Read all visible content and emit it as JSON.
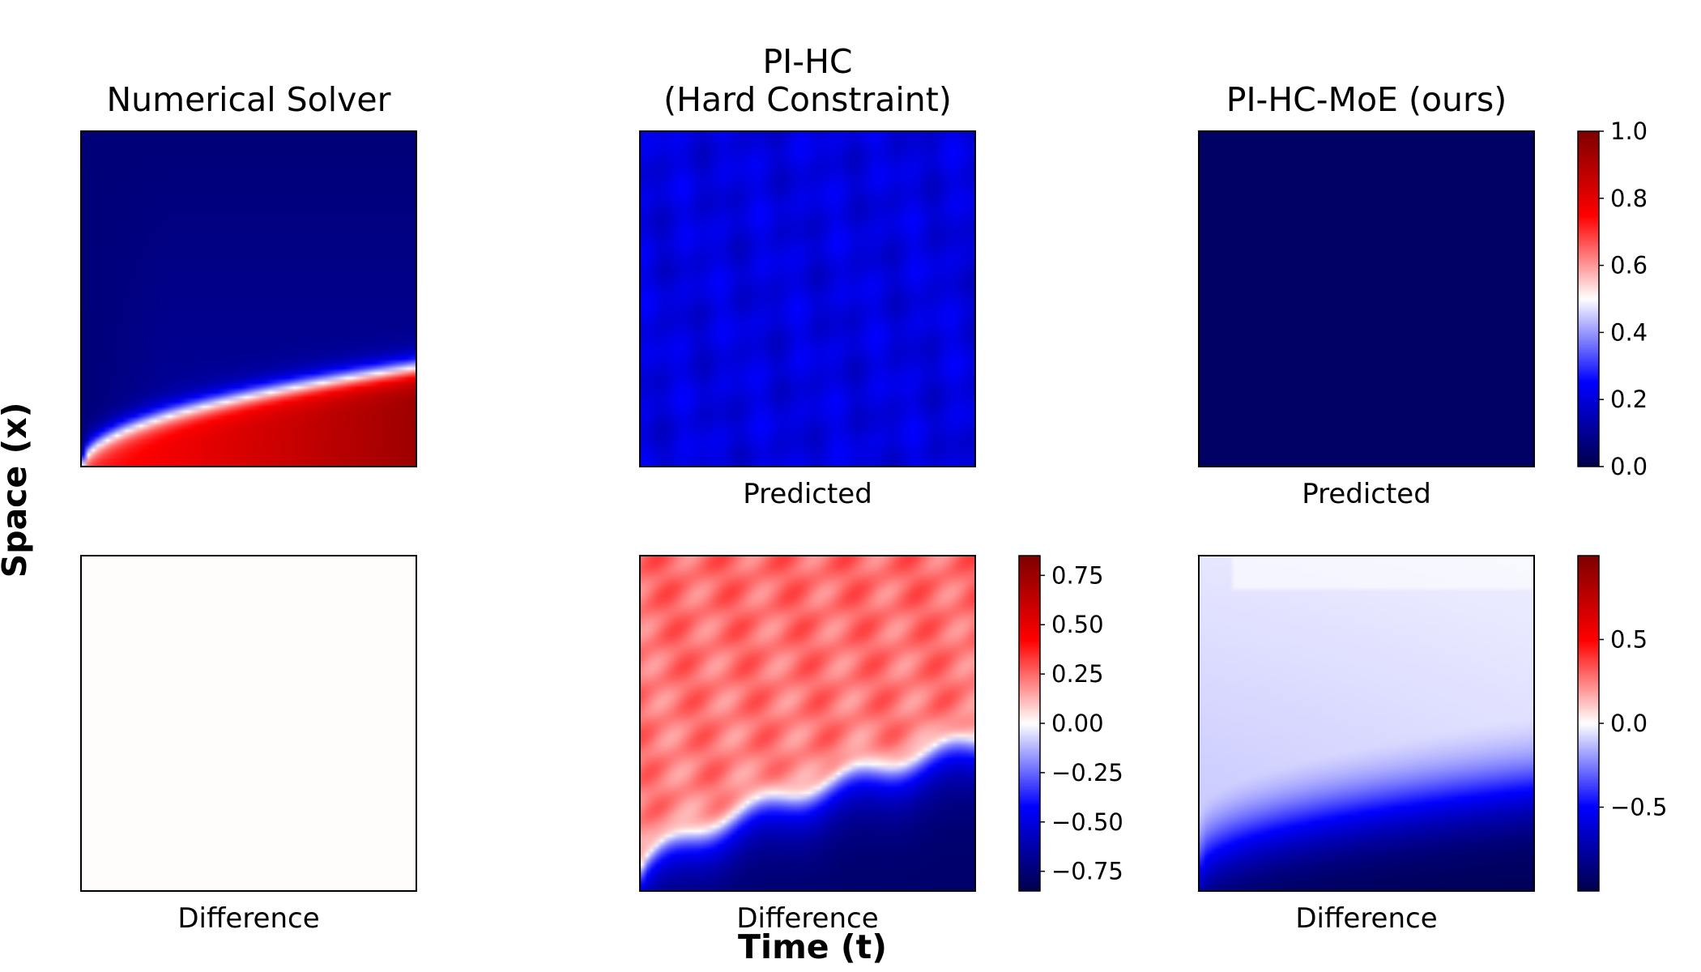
{
  "figure": {
    "xlabel": "Time (t)",
    "ylabel": "Space (x)"
  },
  "chart_data": [
    {
      "type": "heatmap",
      "panel": "top-left",
      "title": "Numerical Solver",
      "xlabel": "",
      "field": "front",
      "colormap": "seismic"
    },
    {
      "type": "heatmap",
      "panel": "top-middle",
      "title": "PI-HC\n(Hard Constraint)",
      "xlabel": "Predicted",
      "field": "uniform-blue",
      "approx_value": 0.21,
      "colormap": "seismic"
    },
    {
      "type": "heatmap",
      "panel": "top-right",
      "title": "PI-HC-MoE (ours)",
      "xlabel": "Predicted",
      "field": "uniform-dark",
      "approx_value": 0.0,
      "colormap": "seismic",
      "colorbar": {
        "range": [
          0.0,
          1.0
        ],
        "ticks": [
          "1.0",
          "0.8",
          "0.6",
          "0.4",
          "0.2",
          "0.0"
        ]
      }
    },
    {
      "type": "heatmap",
      "panel": "bottom-left",
      "title": "",
      "xlabel": "Difference",
      "field": "uniform-zero",
      "approx_value": 0.0,
      "colormap": "seismic"
    },
    {
      "type": "heatmap",
      "panel": "bottom-middle",
      "title": "",
      "xlabel": "Difference",
      "field": "diff-hc",
      "colormap": "seismic",
      "colorbar": {
        "range": [
          -0.85,
          0.85
        ],
        "ticks": [
          "0.75",
          "0.50",
          "0.25",
          "0.00",
          "−0.25",
          "−0.50",
          "−0.75"
        ],
        "tick_values": [
          0.75,
          0.5,
          0.25,
          0.0,
          -0.25,
          -0.5,
          -0.75
        ]
      }
    },
    {
      "type": "heatmap",
      "panel": "bottom-right",
      "title": "",
      "xlabel": "Difference",
      "field": "diff-moe",
      "colormap": "seismic",
      "colorbar": {
        "range": [
          -1.0,
          1.0
        ],
        "ticks": [
          "0.5",
          "0.0",
          "−0.5"
        ],
        "tick_values": [
          0.5,
          0.0,
          -0.5
        ]
      }
    }
  ]
}
